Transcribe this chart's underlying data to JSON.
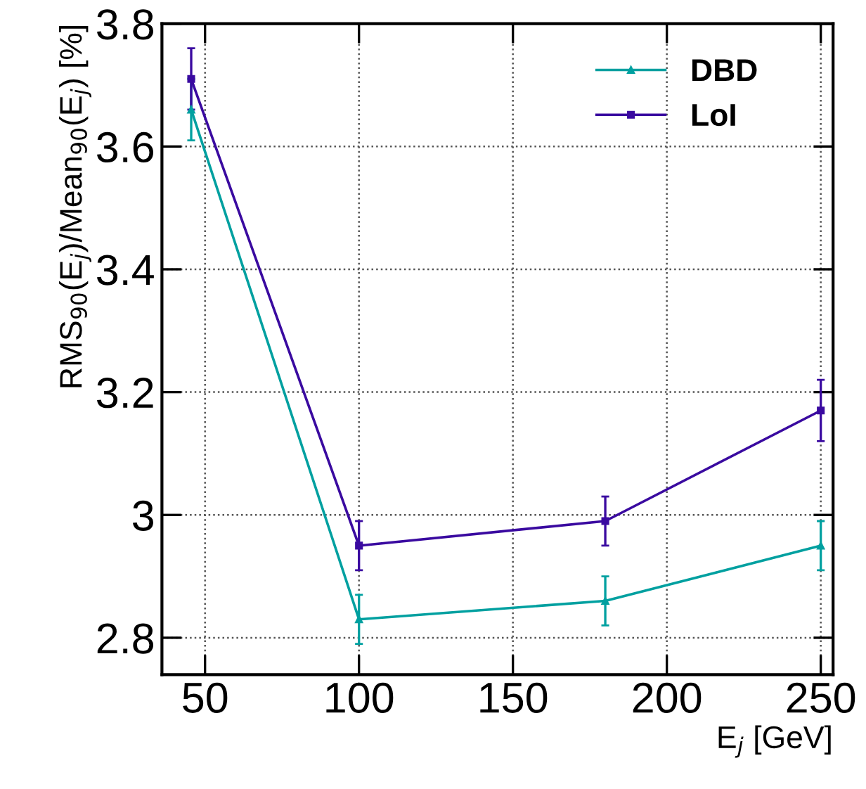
{
  "chart_data": {
    "type": "line",
    "xlabel": "E$_{j}$ [GeV]",
    "ylabel": "RMS$_{90}$(E$_{j}$)/Mean$_{90}$(E$_{j}$) [%]",
    "series": [
      {
        "name": "DBD",
        "color": "#00a0a0",
        "marker": "triangle",
        "x": [
          45.5,
          100,
          180,
          250
        ],
        "values": [
          3.66,
          2.83,
          2.86,
          2.95
        ],
        "errors": [
          0.05,
          0.04,
          0.04,
          0.04
        ]
      },
      {
        "name": "LoI",
        "color": "#3a0aa0",
        "marker": "square",
        "x": [
          45.5,
          100,
          180,
          250
        ],
        "values": [
          3.71,
          2.95,
          2.99,
          3.17
        ],
        "errors": [
          0.05,
          0.04,
          0.04,
          0.05
        ]
      }
    ],
    "xlim": [
      36,
      254
    ],
    "ylim": [
      2.74,
      3.8
    ],
    "xticks": [
      50,
      100,
      150,
      200,
      250
    ],
    "yticks": [
      2.8,
      3,
      3.2,
      3.4,
      3.6,
      3.8
    ],
    "grid": true,
    "legend": "top right",
    "line_style": "solid"
  }
}
